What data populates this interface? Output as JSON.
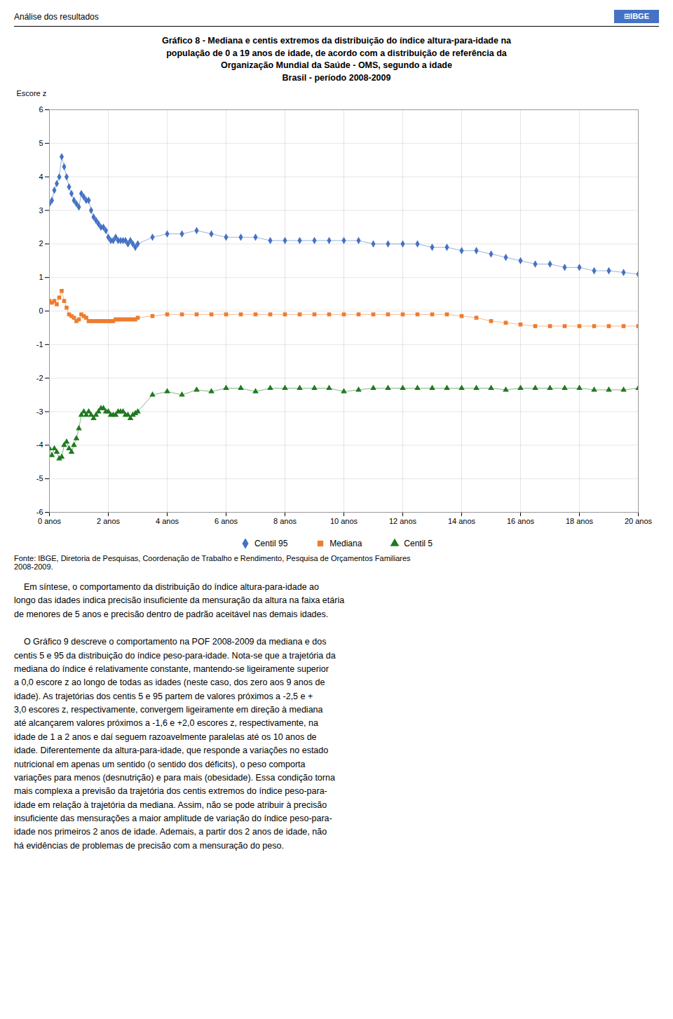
{
  "chart_data": {
    "type": "line",
    "title": "Gráfico 8 - Mediana e centis extremos da distribuição do índice altura-para-idade na\npopulação de 0 a 19 anos de idade, de acordo com a distribuição de referência da\nOrganização Mundial da Saúde - OMS, segundo a idade\nBrasil - período 2008-2009",
    "ylabel": "Escore z",
    "annotations": [
      "Análise dos resultados",
      "⊞IBGE",
      "Fonte: IBGE, Diretoria de Pesquisas, Coordenação de Trabalho e Rendimento, Pesquisa de Orçamentos Familiares\n2008-2009.",
      "    Em síntese, o comportamento da distribuição do índice altura-para-idade ao\nlongo das idades indica precisão insuficiente da mensuração da altura na faixa etária\nde menores de 5 anos e precisão dentro de padrão aceitável nas demais idades.",
      "    O Gráfico 9 descreve o comportamento na POF 2008-2009 da mediana e dos\ncentis 5 e 95 da distribuição do índice peso-para-idade. Nota-se que a trajetória da\nmediana do índice é relativamente constante, mantendo-se ligeiramente superior\na 0,0 escore z ao longo de todas as idades (neste caso, dos zero aos 9 anos de\nidade). As trajetórias dos centis 5 e 95 partem de valores próximos a -2,5 e +\n3,0 escores z, respectivamente, convergem ligeiramente em direção à mediana\naté alcançarem valores próximos a -1,6 e +2,0 escores z, respectivamente, na\nidade de 1 a 2 anos e daí seguem razoavelmente paralelas até os 10 anos de\nidade. Diferentemente da altura-para-idade, que responde a variações no estado\nnutricional em apenas um sentido (o sentido dos déficits), o peso comporta\nvariações para menos (desnutrição) e para mais (obesidade). Essa condição torna\nmais complexa a previsão da trajetória dos centis extremos do índice peso-para-\nidade em relação à trajetória da mediana. Assim, não se pode atribuir à precisão\ninsuficiente das mensurações a maior amplitude de variação do índice peso-para-\nidade nos primeiros 2 anos de idade. Ademais, a partir dos 2 anos de idade, não\nhá evidências de problemas de precisão com a mensuração do peso."
    ],
    "x": [
      0,
      1,
      2,
      3,
      4,
      5,
      6,
      7,
      8,
      9,
      10,
      11,
      12,
      13,
      14,
      15,
      16,
      17,
      18,
      19,
      20,
      21,
      22,
      23,
      24,
      25,
      26,
      27,
      28,
      29,
      30,
      31,
      32,
      33,
      34,
      35,
      36,
      42,
      48,
      54,
      60,
      66,
      72,
      78,
      84,
      90,
      96,
      102,
      108,
      114,
      120,
      126,
      132,
      138,
      144,
      150,
      156,
      162,
      168,
      174,
      180,
      186,
      192,
      198,
      204,
      210,
      216,
      222,
      228,
      234,
      240
    ],
    "xlim": [
      0,
      240
    ],
    "xticks": [
      {
        "value": 0,
        "label": "0 anos"
      },
      {
        "value": 24,
        "label": "2 anos"
      },
      {
        "value": 48,
        "label": "4 anos"
      },
      {
        "value": 72,
        "label": "6 anos"
      },
      {
        "value": 96,
        "label": "8 anos"
      },
      {
        "value": 120,
        "label": "10 anos"
      },
      {
        "value": 144,
        "label": "12 anos"
      },
      {
        "value": 168,
        "label": "14 anos"
      },
      {
        "value": 192,
        "label": "16 anos"
      },
      {
        "value": 216,
        "label": "18 anos"
      },
      {
        "value": 240,
        "label": "20 anos"
      }
    ],
    "ylim": [
      -6,
      6
    ],
    "yticks": [
      -6,
      -5,
      -4,
      -3,
      -2,
      -1,
      0,
      1,
      2,
      3,
      4,
      5,
      6
    ],
    "grid": true,
    "legend": "bottom",
    "series": [
      {
        "name": "Centil 95",
        "color": "#4472C4",
        "marker": "diamond",
        "line_style": "solid",
        "values": [
          3.2,
          3.3,
          3.6,
          3.8,
          4.0,
          4.6,
          4.3,
          4.0,
          3.7,
          3.5,
          3.3,
          3.2,
          3.1,
          3.5,
          3.4,
          3.3,
          3.3,
          3.0,
          2.8,
          2.7,
          2.6,
          2.5,
          2.5,
          2.4,
          2.2,
          2.1,
          2.1,
          2.2,
          2.1,
          2.1,
          2.1,
          2.1,
          2.0,
          2.1,
          2.0,
          1.9,
          2.0,
          2.2,
          2.3,
          2.3,
          2.4,
          2.3,
          2.2,
          2.2,
          2.2,
          2.1,
          2.1,
          2.1,
          2.1,
          2.1,
          2.1,
          2.1,
          2.0,
          2.0,
          2.0,
          2.0,
          1.9,
          1.9,
          1.8,
          1.8,
          1.7,
          1.6,
          1.5,
          1.4,
          1.4,
          1.3,
          1.3,
          1.2,
          1.2,
          1.15,
          1.1
        ]
      },
      {
        "name": "Mediana",
        "color": "#ED7D31",
        "marker": "square",
        "line_style": "solid",
        "values": [
          0.3,
          0.25,
          0.3,
          0.2,
          0.4,
          0.6,
          0.3,
          0.1,
          -0.1,
          -0.15,
          -0.2,
          -0.3,
          -0.25,
          -0.1,
          -0.15,
          -0.2,
          -0.3,
          -0.3,
          -0.3,
          -0.3,
          -0.3,
          -0.3,
          -0.3,
          -0.3,
          -0.3,
          -0.3,
          -0.3,
          -0.25,
          -0.25,
          -0.25,
          -0.25,
          -0.25,
          -0.25,
          -0.25,
          -0.25,
          -0.25,
          -0.2,
          -0.15,
          -0.1,
          -0.1,
          -0.1,
          -0.1,
          -0.1,
          -0.1,
          -0.1,
          -0.1,
          -0.1,
          -0.1,
          -0.1,
          -0.1,
          -0.1,
          -0.1,
          -0.1,
          -0.1,
          -0.1,
          -0.1,
          -0.1,
          -0.1,
          -0.15,
          -0.2,
          -0.3,
          -0.35,
          -0.4,
          -0.45,
          -0.45,
          -0.45,
          -0.45,
          -0.45,
          -0.45,
          -0.45,
          -0.45
        ]
      },
      {
        "name": "Centil 5",
        "color": "#1F7A1F",
        "marker": "triangle",
        "line_style": "solid",
        "values": [
          -4.1,
          -4.3,
          -4.1,
          -4.2,
          -4.4,
          -4.35,
          -4.0,
          -3.9,
          -4.1,
          -4.2,
          -4.0,
          -3.8,
          -3.5,
          -3.1,
          -3.0,
          -3.1,
          -3.0,
          -3.1,
          -3.2,
          -3.1,
          -3.0,
          -2.9,
          -2.9,
          -3.0,
          -3.0,
          -3.1,
          -3.1,
          -3.1,
          -3.0,
          -3.0,
          -3.0,
          -3.1,
          -3.1,
          -3.2,
          -3.1,
          -3.05,
          -3.0,
          -2.5,
          -2.4,
          -2.5,
          -2.35,
          -2.4,
          -2.3,
          -2.3,
          -2.4,
          -2.3,
          -2.3,
          -2.3,
          -2.3,
          -2.3,
          -2.4,
          -2.35,
          -2.3,
          -2.3,
          -2.3,
          -2.3,
          -2.3,
          -2.3,
          -2.3,
          -2.3,
          -2.3,
          -2.35,
          -2.3,
          -2.3,
          -2.3,
          -2.3,
          -2.3,
          -2.35,
          -2.35,
          -2.35,
          -2.3
        ]
      }
    ]
  }
}
